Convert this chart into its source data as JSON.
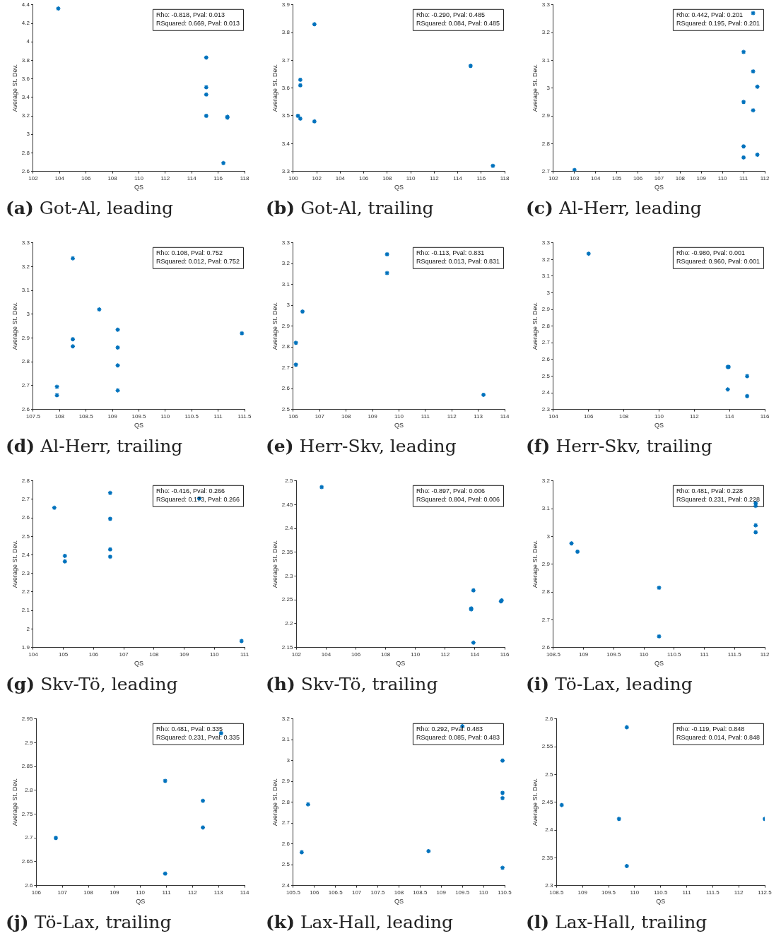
{
  "chart_data": [
    {
      "type": "scatter",
      "title": "(a) Got-Al, leading",
      "xlabel": "QS",
      "ylabel": "Average St. Dev.",
      "annotations": [
        "Rho: -0.818, Pval: 0.013",
        "RSquared: 0.669, Pval: 0.013"
      ],
      "color": "#0072bd",
      "marker": "cross",
      "grid": false,
      "x": [
        103.9,
        115.1,
        115.1,
        115.1,
        115.1,
        116.7,
        116.7,
        116.4
      ],
      "values": [
        4.36,
        3.83,
        3.51,
        3.43,
        3.2,
        3.19,
        3.18,
        2.69
      ],
      "xlim": [
        102,
        118
      ],
      "xticks": [
        102,
        104,
        106,
        108,
        110,
        112,
        114,
        116,
        118
      ],
      "ylim": [
        2.6,
        4.4
      ],
      "yticks": [
        2.6,
        2.8,
        3,
        3.2,
        3.4,
        3.6,
        3.8,
        4,
        4.2,
        4.4
      ]
    },
    {
      "type": "scatter",
      "title": "(b) Got-Al, trailing",
      "xlabel": "QS",
      "ylabel": "Average St. Dev.",
      "annotations": [
        "Rho: -0.290, Pval: 0.485",
        "RSquared: 0.084, Pval: 0.485"
      ],
      "color": "#0072bd",
      "marker": "cross",
      "grid": false,
      "x": [
        101.8,
        100.6,
        100.6,
        100.4,
        100.6,
        101.8,
        115.1,
        117
      ],
      "values": [
        3.83,
        3.63,
        3.61,
        3.5,
        3.49,
        3.48,
        3.68,
        3.32
      ],
      "xlim": [
        100,
        118
      ],
      "xticks": [
        100,
        102,
        104,
        106,
        108,
        110,
        112,
        114,
        116,
        118
      ],
      "ylim": [
        3.3,
        3.9
      ],
      "yticks": [
        3.3,
        3.4,
        3.5,
        3.6,
        3.7,
        3.8,
        3.9
      ]
    },
    {
      "type": "scatter",
      "title": "(c) Al-Herr, leading",
      "xlabel": "QS",
      "ylabel": "Average St. Dev.",
      "annotations": [
        "Rho: 0.442, Pval: 0.201",
        "RSquared: 0.195, Pval: 0.201"
      ],
      "color": "#0072bd",
      "marker": "cross",
      "grid": false,
      "x": [
        103,
        111,
        111,
        111,
        111,
        111.45,
        111.45,
        111.45,
        111.65,
        111.65
      ],
      "values": [
        2.705,
        3.13,
        2.95,
        2.79,
        2.75,
        3.27,
        3.06,
        2.92,
        3.005,
        2.76
      ],
      "xlim": [
        102,
        112
      ],
      "xticks": [
        102,
        103,
        104,
        105,
        106,
        107,
        108,
        109,
        110,
        111,
        112
      ],
      "ylim": [
        2.7,
        3.3
      ],
      "yticks": [
        2.7,
        2.8,
        2.9,
        3,
        3.1,
        3.2,
        3.3
      ]
    },
    {
      "type": "scatter",
      "title": "(d) Al-Herr, trailing",
      "xlabel": "QS",
      "ylabel": "Average St. Dev.",
      "annotations": [
        "Rho: 0.108, Pval: 0.752",
        "RSquared: 0.012, Pval: 0.752"
      ],
      "color": "#0072bd",
      "marker": "cross",
      "grid": false,
      "x": [
        108.25,
        108.25,
        108.25,
        107.95,
        107.95,
        108.75,
        109.1,
        109.1,
        109.1,
        109.1,
        111.45
      ],
      "values": [
        3.235,
        2.895,
        2.865,
        2.695,
        2.66,
        3.02,
        2.935,
        2.86,
        2.785,
        2.68,
        2.92
      ],
      "xlim": [
        107.5,
        111.5
      ],
      "xticks": [
        107.5,
        108,
        108.5,
        109,
        109.5,
        110,
        110.5,
        111,
        111.5
      ],
      "ylim": [
        2.6,
        3.3
      ],
      "yticks": [
        2.6,
        2.7,
        2.8,
        2.9,
        3,
        3.1,
        3.2,
        3.3
      ]
    },
    {
      "type": "scatter",
      "title": "(e) Herr-Skv, leading",
      "xlabel": "QS",
      "ylabel": "Average St. Dev.",
      "annotations": [
        "Rho: -0.113, Pval: 0.831",
        "RSquared: 0.013, Pval: 0.831"
      ],
      "color": "#0072bd",
      "marker": "cross",
      "grid": false,
      "x": [
        106.1,
        106.1,
        106.35,
        109.55,
        109.55,
        113.2
      ],
      "values": [
        2.82,
        2.715,
        2.97,
        3.245,
        3.155,
        2.57
      ],
      "xlim": [
        106,
        114
      ],
      "xticks": [
        106,
        107,
        108,
        109,
        110,
        111,
        112,
        113,
        114
      ],
      "ylim": [
        2.5,
        3.3
      ],
      "yticks": [
        2.5,
        2.6,
        2.7,
        2.8,
        2.9,
        3,
        3.1,
        3.2,
        3.3
      ]
    },
    {
      "type": "scatter",
      "title": "(f) Herr-Skv, trailing",
      "xlabel": "QS",
      "ylabel": "Average St. Dev.",
      "annotations": [
        "Rho: -0.980, Pval: 0.001",
        "RSquared: 0.960, Pval: 0.001"
      ],
      "color": "#0072bd",
      "marker": "cross",
      "grid": false,
      "x": [
        106,
        113.9,
        113.95,
        113.9,
        115,
        115
      ],
      "values": [
        3.235,
        2.555,
        2.555,
        2.42,
        2.5,
        2.38
      ],
      "xlim": [
        104,
        116
      ],
      "xticks": [
        104,
        106,
        108,
        110,
        112,
        114,
        116
      ],
      "ylim": [
        2.3,
        3.3
      ],
      "yticks": [
        2.3,
        2.4,
        2.5,
        2.6,
        2.7,
        2.8,
        2.9,
        3,
        3.1,
        3.2,
        3.3
      ]
    },
    {
      "type": "scatter",
      "title": "(g) Skv-Tö, leading",
      "xlabel": "QS",
      "ylabel": "Average St. Dev.",
      "annotations": [
        "Rho: -0.416, Pval: 0.266",
        "RSquared: 0.173, Pval: 0.266"
      ],
      "color": "#0072bd",
      "marker": "cross",
      "grid": false,
      "x": [
        104.7,
        105.05,
        105.05,
        106.55,
        106.55,
        106.55,
        106.55,
        109.5,
        110.9
      ],
      "values": [
        2.655,
        2.395,
        2.365,
        2.735,
        2.595,
        2.43,
        2.39,
        2.705,
        1.935
      ],
      "xlim": [
        104,
        111
      ],
      "xticks": [
        104,
        105,
        106,
        107,
        108,
        109,
        110,
        111
      ],
      "ylim": [
        1.9,
        2.8
      ],
      "yticks": [
        1.9,
        2,
        2.1,
        2.2,
        2.3,
        2.4,
        2.5,
        2.6,
        2.7,
        2.8
      ]
    },
    {
      "type": "scatter",
      "title": "(h) Skv-Tö, trailing",
      "xlabel": "QS",
      "ylabel": "Average St. Dev.",
      "annotations": [
        "Rho: -0.897, Pval: 0.006",
        "RSquared: 0.804, Pval: 0.006"
      ],
      "color": "#0072bd",
      "marker": "cross",
      "grid": false,
      "x": [
        103.7,
        113.75,
        113.75,
        113.9,
        113.9,
        115.75,
        115.8
      ],
      "values": [
        2.487,
        2.23,
        2.232,
        2.27,
        2.16,
        2.247,
        2.249
      ],
      "xlim": [
        102,
        116
      ],
      "xticks": [
        102,
        104,
        106,
        108,
        110,
        112,
        114,
        116
      ],
      "ylim": [
        2.15,
        2.5
      ],
      "yticks": [
        2.15,
        2.2,
        2.25,
        2.3,
        2.35,
        2.4,
        2.45,
        2.5
      ]
    },
    {
      "type": "scatter",
      "title": "(i) Tö-Lax, leading",
      "xlabel": "QS",
      "ylabel": "Average St. Dev.",
      "annotations": [
        "Rho: 0.481, Pval: 0.228",
        "RSquared: 0.231, Pval: 0.228"
      ],
      "color": "#0072bd",
      "marker": "cross",
      "grid": false,
      "x": [
        108.8,
        108.9,
        110.25,
        110.25,
        111.85,
        111.85,
        111.85,
        111.85
      ],
      "values": [
        2.975,
        2.945,
        2.815,
        2.64,
        3.12,
        3.11,
        3.04,
        3.015
      ],
      "xlim": [
        108.5,
        112
      ],
      "xticks": [
        108.5,
        109,
        109.5,
        110,
        110.5,
        111,
        111.5,
        112
      ],
      "ylim": [
        2.6,
        3.2
      ],
      "yticks": [
        2.6,
        2.7,
        2.8,
        2.9,
        3,
        3.1,
        3.2
      ]
    },
    {
      "type": "scatter",
      "title": "(j) Tö-Lax, trailing",
      "xlabel": "QS",
      "ylabel": "Average St. Dev.",
      "annotations": [
        "Rho: 0.481, Pval: 0.335",
        "RSquared: 0.231, Pval: 0.335"
      ],
      "color": "#0072bd",
      "marker": "cross",
      "grid": false,
      "x": [
        106.75,
        110.95,
        110.95,
        112.4,
        112.4,
        113.1
      ],
      "values": [
        2.7,
        2.82,
        2.625,
        2.778,
        2.722,
        2.92
      ],
      "xlim": [
        106,
        114
      ],
      "xticks": [
        106,
        107,
        108,
        109,
        110,
        111,
        112,
        113,
        114
      ],
      "ylim": [
        2.6,
        2.95
      ],
      "yticks": [
        2.6,
        2.65,
        2.7,
        2.75,
        2.8,
        2.85,
        2.9,
        2.95
      ]
    },
    {
      "type": "scatter",
      "title": "(k) Lax-Hall, leading",
      "xlabel": "QS",
      "ylabel": "Average St. Dev.",
      "annotations": [
        "Rho: 0.292, Pval: 0.483",
        "RSquared: 0.085, Pval: 0.483"
      ],
      "color": "#0072bd",
      "marker": "cross",
      "grid": false,
      "x": [
        105.7,
        105.85,
        108.7,
        109.5,
        110.45,
        110.45,
        110.45,
        110.45
      ],
      "values": [
        2.56,
        2.79,
        2.565,
        3.165,
        3.0,
        2.845,
        2.82,
        2.485
      ],
      "xlim": [
        105.5,
        110.5
      ],
      "xticks": [
        105.5,
        106,
        106.5,
        107,
        107.5,
        108,
        108.5,
        109,
        109.5,
        110,
        110.5
      ],
      "ylim": [
        2.4,
        3.2
      ],
      "yticks": [
        2.4,
        2.5,
        2.6,
        2.7,
        2.8,
        2.9,
        3,
        3.1,
        3.2
      ]
    },
    {
      "type": "scatter",
      "title": "(l) Lax-Hall, trailing",
      "xlabel": "QS",
      "ylabel": "Average St. Dev.",
      "annotations": [
        "Rho: -0.119, Pval: 0.848",
        "RSquared: 0.014, Pval: 0.848"
      ],
      "color": "#0072bd",
      "marker": "cross",
      "grid": false,
      "x": [
        108.6,
        109.7,
        109.85,
        109.85,
        112.5
      ],
      "values": [
        2.445,
        2.42,
        2.585,
        2.335,
        2.42
      ],
      "xlim": [
        108.5,
        112.5
      ],
      "xticks": [
        108.5,
        109,
        109.5,
        110,
        110.5,
        111,
        111.5,
        112,
        112.5
      ],
      "ylim": [
        2.3,
        2.6
      ],
      "yticks": [
        2.3,
        2.35,
        2.4,
        2.45,
        2.5,
        2.55,
        2.6
      ]
    }
  ]
}
